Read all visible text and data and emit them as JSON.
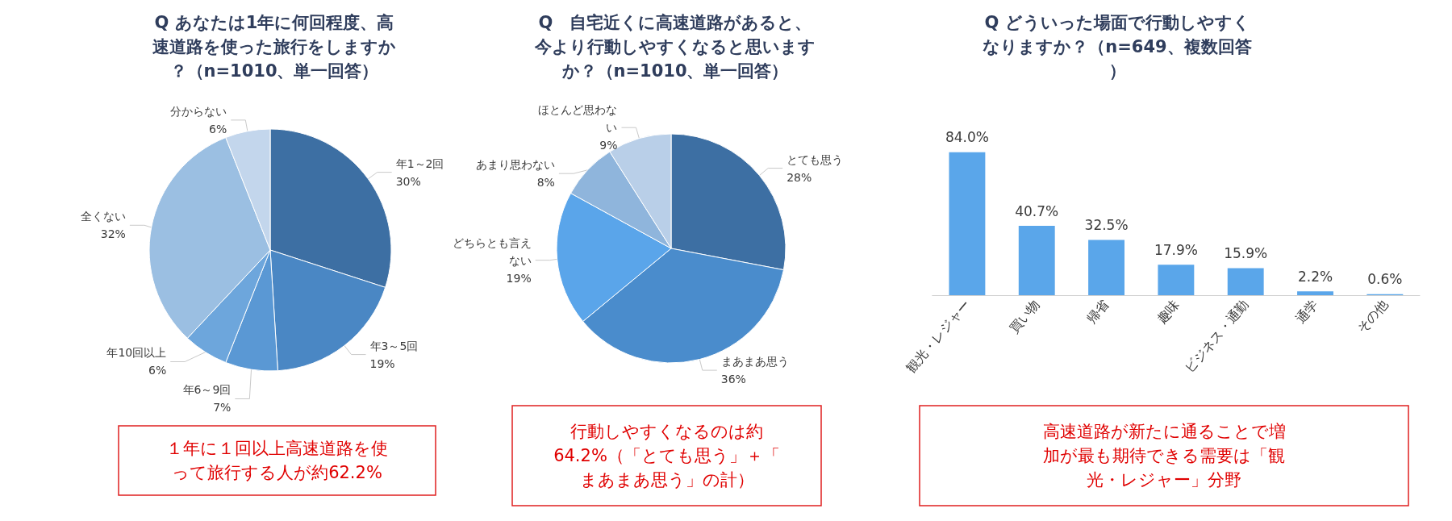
{
  "chart_data": [
    {
      "type": "pie",
      "title": "Q あなたは1年に何回程度、高速道路を使った旅行をしますか？（n=1010、単一回答）",
      "categories": [
        "年1～2回",
        "年3～5回",
        "年6～9回",
        "年10回以上",
        "全くない",
        "分からない"
      ],
      "values": [
        30,
        19,
        7,
        6,
        32,
        6
      ],
      "value_labels": [
        "30%",
        "19%",
        "7%",
        "6%",
        "32%",
        "6%"
      ],
      "colors": [
        "#3d6fa3",
        "#4a87c4",
        "#5a98d4",
        "#6da6dc",
        "#9bbfe2",
        "#c3d6ec"
      ],
      "annotations": [
        "１年に１回以上高速道路を使って旅行する人が約62.2%"
      ]
    },
    {
      "type": "pie",
      "title": "Q　自宅近くに高速道路があると、今より行動しやすくなると思いますか？（n=1010、単一回答）",
      "categories": [
        "とても思う",
        "まあまあ思う",
        "どちらとも言えない",
        "あまり思わない",
        "ほとんど思わない"
      ],
      "values": [
        28,
        36,
        19,
        8,
        9
      ],
      "value_labels": [
        "28%",
        "36%",
        "19%",
        "8%",
        "9%"
      ],
      "colors": [
        "#3d6fa3",
        "#4a8ccc",
        "#5aa5ea",
        "#8fb5dc",
        "#b9cfe8"
      ],
      "annotations": [
        "行動しやすくなるのは約64.2%（「とても思う」＋「まあまあ思う」の計）"
      ]
    },
    {
      "type": "bar",
      "title": "Q どういった場面で行動しやすくなりますか？（n=649、複数回答）",
      "categories": [
        "観光・レジャー",
        "買い物",
        "帰省",
        "趣味",
        "ビジネス・通勤",
        "通学",
        "その他"
      ],
      "values": [
        84.0,
        40.7,
        32.5,
        17.9,
        15.9,
        2.2,
        0.6
      ],
      "value_labels": [
        "84.0%",
        "40.7%",
        "32.5%",
        "17.9%",
        "15.9%",
        "2.2%",
        "0.6%"
      ],
      "color": "#5aa6ea",
      "annotations": [
        "高速道路が新たに通ることで増加が最も期待できる需要は「観光・レジャー」分野"
      ]
    }
  ]
}
